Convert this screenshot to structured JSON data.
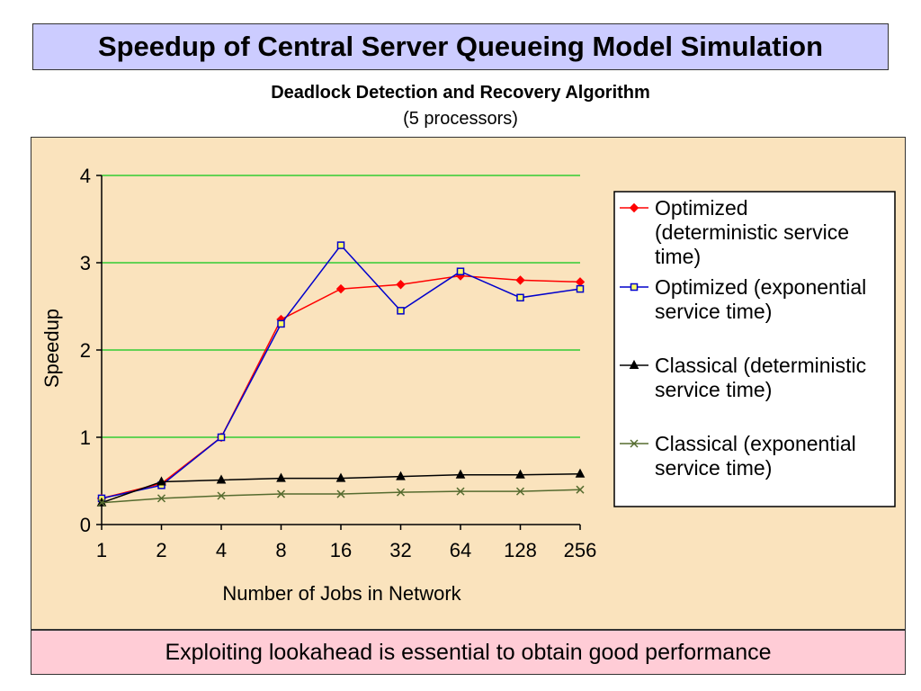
{
  "slide": {
    "title": "Speedup of Central Server Queueing Model Simulation",
    "footer": "Exploiting lookahead is essential to obtain good performance"
  },
  "colors": {
    "title_bg": "#ccccff",
    "plot_bg": "#fae3bd",
    "footer_bg": "#ffccd6",
    "gridline": "#33cc33"
  },
  "chart_data": {
    "type": "line",
    "title": "Deadlock Detection and Recovery Algorithm",
    "subtitle": "(5 processors)",
    "xlabel": "Number of Jobs in Network",
    "ylabel": "Speedup",
    "categories": [
      "1",
      "2",
      "4",
      "8",
      "16",
      "32",
      "64",
      "128",
      "256"
    ],
    "ylim": [
      0,
      4
    ],
    "yticks": [
      "0",
      "1",
      "2",
      "3",
      "4"
    ],
    "grid": true,
    "legend_position": "right",
    "series": [
      {
        "name": "Optimized (deterministic service time)",
        "legend_lines": [
          "Optimized",
          "(deterministic service",
          "time)"
        ],
        "color": "#ff0000",
        "marker": "diamond",
        "values": [
          0.3,
          0.47,
          1.0,
          2.35,
          2.7,
          2.75,
          2.85,
          2.8,
          2.78
        ]
      },
      {
        "name": "Optimized (exponential service time)",
        "legend_lines": [
          "Optimized (exponential",
          "service time)"
        ],
        "color": "#0000cc",
        "marker": "square",
        "values": [
          0.3,
          0.45,
          1.0,
          2.3,
          3.2,
          2.45,
          2.9,
          2.6,
          2.7
        ]
      },
      {
        "name": "Classical (deterministic service time)",
        "legend_lines": [
          "Classical (deterministic",
          "service time)"
        ],
        "color": "#000000",
        "marker": "triangle",
        "values": [
          0.25,
          0.49,
          0.51,
          0.53,
          0.53,
          0.55,
          0.57,
          0.57,
          0.58
        ]
      },
      {
        "name": "Classical (exponential service time)",
        "legend_lines": [
          "Classical (exponential",
          "service time)"
        ],
        "color": "#556b2f",
        "marker": "x",
        "values": [
          0.25,
          0.3,
          0.33,
          0.35,
          0.35,
          0.37,
          0.38,
          0.38,
          0.4
        ]
      }
    ]
  }
}
